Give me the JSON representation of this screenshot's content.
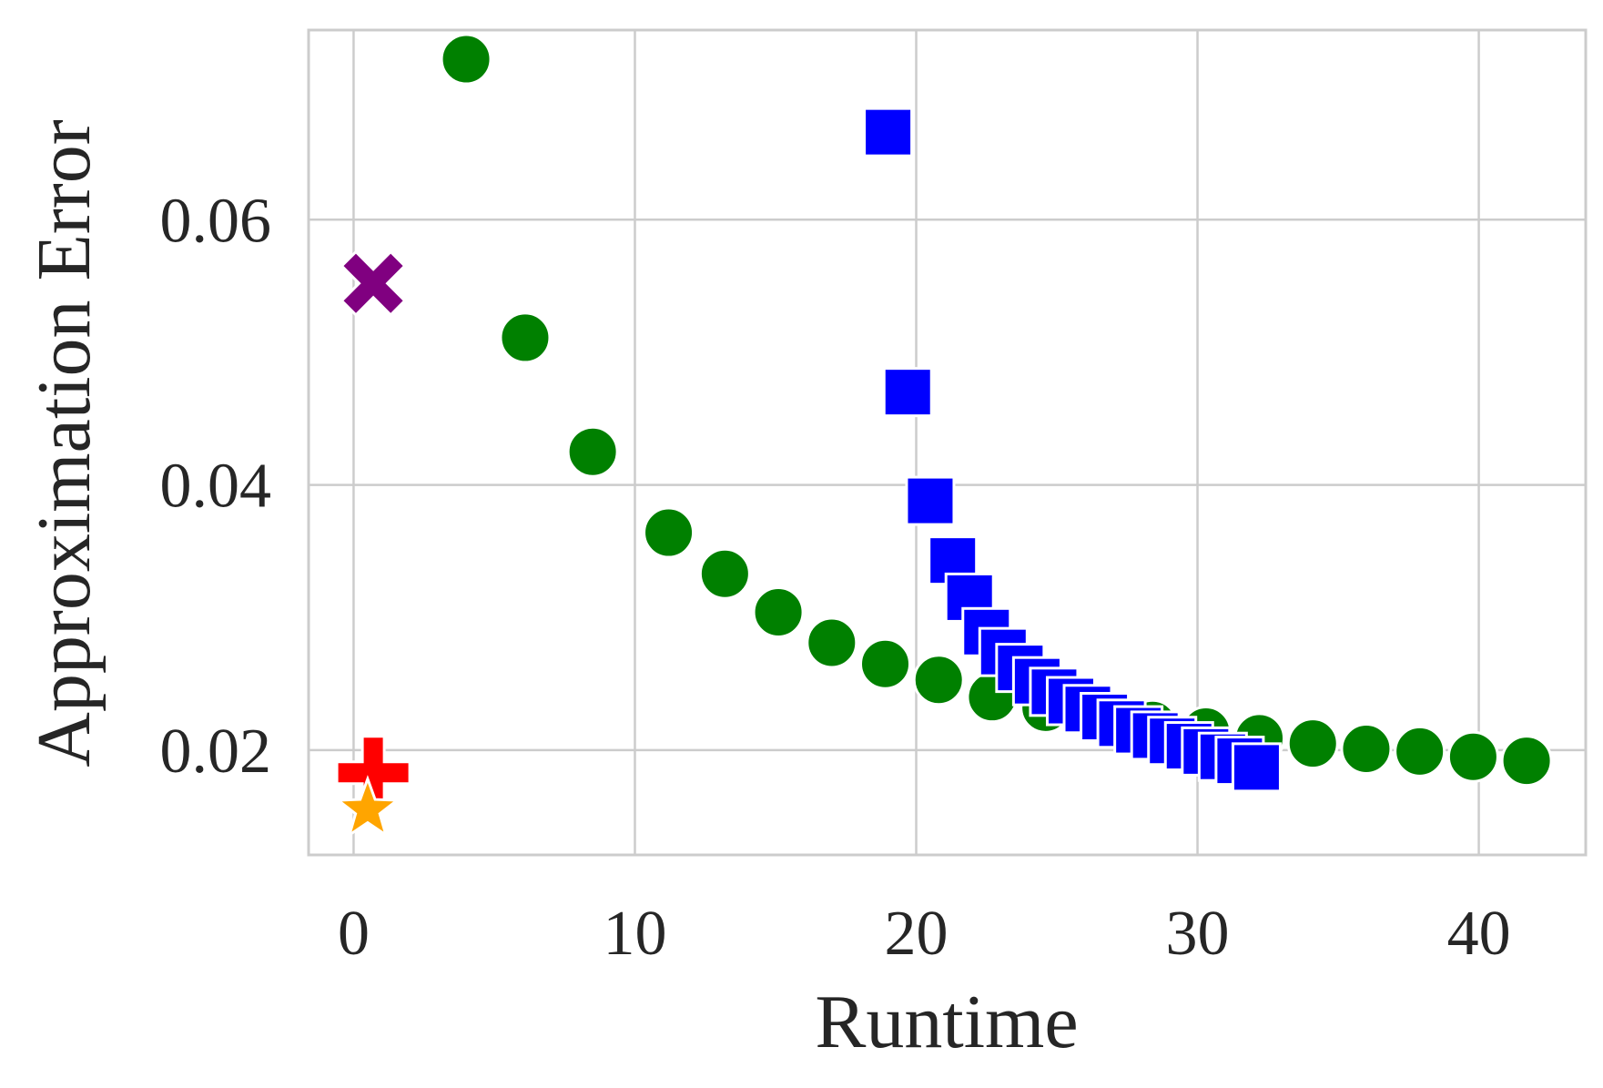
{
  "chart_data": {
    "type": "scatter",
    "title": "",
    "xlabel": "Runtime",
    "ylabel": "Approximation Error",
    "xlim": [
      -1.6,
      43.8
    ],
    "ylim": [
      0.0121,
      0.0743
    ],
    "xticks": [
      0,
      10,
      20,
      30,
      40
    ],
    "yticks": [
      0.02,
      0.04,
      0.06
    ],
    "xtick_labels": [
      "0",
      "10",
      "20",
      "30",
      "40"
    ],
    "ytick_labels": [
      "0.02",
      "0.04",
      "0.06"
    ],
    "grid": true,
    "legend": "none",
    "series": [
      {
        "marker": "circle",
        "color": "#008000",
        "x": [
          4.0,
          6.1,
          8.5,
          11.2,
          13.2,
          15.1,
          17.0,
          18.9,
          20.8,
          22.7,
          24.6,
          26.5,
          28.4,
          30.3,
          32.2,
          34.1,
          36.0,
          37.9,
          39.8,
          41.7
        ],
        "y": [
          0.0721,
          0.0511,
          0.0425,
          0.0364,
          0.0333,
          0.0304,
          0.0281,
          0.0265,
          0.0253,
          0.024,
          0.0232,
          0.0225,
          0.0219,
          0.0214,
          0.0209,
          0.0205,
          0.0201,
          0.0199,
          0.0195,
          0.0192
        ]
      },
      {
        "marker": "square",
        "color": "#0000ff",
        "x": [
          19.0,
          19.7,
          20.5,
          21.3,
          21.9,
          22.5,
          23.1,
          23.7,
          24.3,
          24.9,
          25.5,
          26.1,
          26.7,
          27.3,
          27.9,
          28.5,
          29.1,
          29.7,
          30.3,
          30.9,
          31.5,
          32.1
        ],
        "y": [
          0.0666,
          0.047,
          0.0388,
          0.0343,
          0.0315,
          0.0289,
          0.0274,
          0.0262,
          0.0252,
          0.0244,
          0.0237,
          0.0231,
          0.0225,
          0.022,
          0.0215,
          0.0211,
          0.0207,
          0.0203,
          0.0199,
          0.0195,
          0.0192,
          0.0187
        ]
      },
      {
        "marker": "x",
        "color": "#800080",
        "x": [
          0.7
        ],
        "y": [
          0.0552
        ]
      },
      {
        "marker": "plus",
        "color": "#ff0000",
        "x": [
          0.7
        ],
        "y": [
          0.0183
        ]
      },
      {
        "marker": "star",
        "color": "#ffa500",
        "x": [
          0.5
        ],
        "y": [
          0.0155
        ]
      }
    ]
  }
}
